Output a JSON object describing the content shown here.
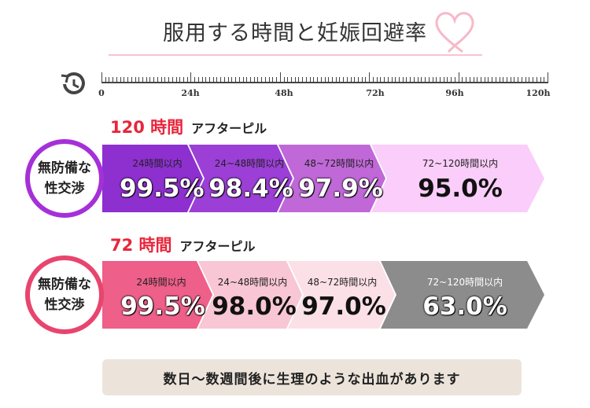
{
  "title": "服用する時間と妊娠回避率",
  "timeline": {
    "ticks": [
      "0",
      "24h",
      "48h",
      "72h",
      "96h",
      "120h"
    ]
  },
  "sections": [
    {
      "hours": "120 時間",
      "pill": "アフターピル",
      "circle_line1": "無防備な",
      "circle_line2": "性交渉",
      "segments": [
        {
          "label": "24時間以内",
          "value": "99.5%"
        },
        {
          "label": "24~48時間以内",
          "value": "98.4%"
        },
        {
          "label": "48~72時間以内",
          "value": "97.9%"
        },
        {
          "label": "72~120時間以内",
          "value": "95.0%"
        }
      ]
    },
    {
      "hours": "72 時間",
      "pill": "アフターピル",
      "circle_line1": "無防備な",
      "circle_line2": "性交渉",
      "segments": [
        {
          "label": "24時間以内",
          "value": "99.5%"
        },
        {
          "label": "24~48時間以内",
          "value": "98.0%"
        },
        {
          "label": "48~72時間以内",
          "value": "97.0%"
        },
        {
          "label": "72~120時間以内",
          "value": "63.0%"
        }
      ]
    }
  ],
  "note": "数日〜数週間後に生理のような出血があります",
  "colors": {
    "accent_red": "#e8253a",
    "s1_seg1": "#8e2fd0",
    "s1_seg2": "#9b3fd6",
    "s1_seg3": "#c068d8",
    "s1_seg4": "#fbcdfa",
    "s1_circle": "#a530d8",
    "s2_seg1": "#ee5f8a",
    "s2_seg2": "#f8c6d4",
    "s2_seg3": "#fbe0e8",
    "s2_seg4": "#8c8c8c",
    "s2_circle": "#e8456e",
    "note_bg": "#ece4db"
  }
}
